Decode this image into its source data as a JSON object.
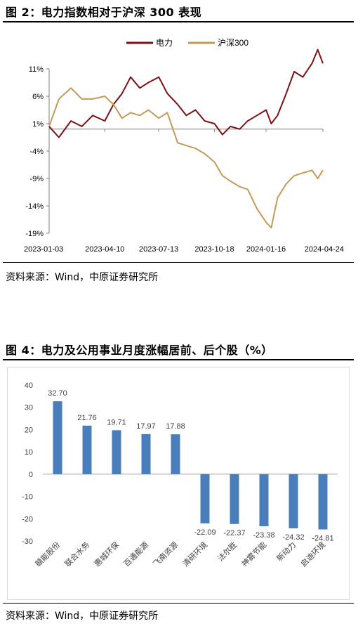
{
  "figure1": {
    "title": "图 2：电力指数相对于沪深 300 表现",
    "source": "资料来源：Wind，中原证券研究所"
  },
  "figure2": {
    "title": "图 4：电力及公用事业月度涨幅居前、后个股（%）",
    "source": "资料来源：Wind，中原证券研究所"
  },
  "chart_data": [
    {
      "type": "line",
      "title": "",
      "xlabel": "",
      "ylabel": "",
      "x_ticks": [
        "2023-01-03",
        "2023-04-10",
        "2023-07-13",
        "2023-10-18",
        "2024-01-16",
        "2024-04-24"
      ],
      "y_ticks": [
        "11%",
        "6%",
        "1%",
        "-4%",
        "-9%",
        "-14%",
        "-19%"
      ],
      "ylim": [
        -19,
        11
      ],
      "legend": "top-center",
      "series": [
        {
          "name": "电力",
          "color": "#7b1114",
          "x": [
            "2023-01-03",
            "2023-01-20",
            "2023-02-10",
            "2023-03-01",
            "2023-03-20",
            "2023-04-10",
            "2023-04-25",
            "2023-05-10",
            "2023-05-25",
            "2023-06-10",
            "2023-06-25",
            "2023-07-13",
            "2023-07-28",
            "2023-08-15",
            "2023-08-30",
            "2023-09-15",
            "2023-10-01",
            "2023-10-18",
            "2023-11-01",
            "2023-11-15",
            "2023-12-01",
            "2023-12-15",
            "2023-12-31",
            "2024-01-16",
            "2024-01-25",
            "2024-02-05",
            "2024-02-20",
            "2024-03-05",
            "2024-03-20",
            "2024-04-05",
            "2024-04-15",
            "2024-04-24"
          ],
          "values": [
            0.5,
            -1.5,
            1.5,
            0.5,
            2.5,
            1.5,
            4.5,
            6.5,
            9.5,
            7.5,
            8.5,
            9.5,
            6.5,
            4.5,
            2.5,
            3.5,
            1.5,
            1.0,
            -1.0,
            0.5,
            0.0,
            1.5,
            2.5,
            3.5,
            1.0,
            2.5,
            6.5,
            10.5,
            9.5,
            12.0,
            14.5,
            12.0
          ]
        },
        {
          "name": "沪深300",
          "color": "#c49a5a",
          "x": [
            "2023-01-03",
            "2023-01-20",
            "2023-02-10",
            "2023-03-01",
            "2023-03-20",
            "2023-04-10",
            "2023-04-25",
            "2023-05-10",
            "2023-05-25",
            "2023-06-10",
            "2023-06-25",
            "2023-07-13",
            "2023-07-28",
            "2023-08-15",
            "2023-08-30",
            "2023-09-15",
            "2023-10-01",
            "2023-10-18",
            "2023-11-01",
            "2023-11-15",
            "2023-12-01",
            "2023-12-15",
            "2023-12-31",
            "2024-01-16",
            "2024-01-25",
            "2024-02-05",
            "2024-02-20",
            "2024-03-05",
            "2024-03-20",
            "2024-04-05",
            "2024-04-15",
            "2024-04-24"
          ],
          "values": [
            0.5,
            5.5,
            7.5,
            5.5,
            5.5,
            6.0,
            4.5,
            2.0,
            3.0,
            2.5,
            3.5,
            2.0,
            3.0,
            -2.5,
            -3.0,
            -3.5,
            -4.5,
            -6.0,
            -8.5,
            -9.5,
            -10.5,
            -11.0,
            -14.5,
            -17.0,
            -18.0,
            -12.5,
            -10.0,
            -8.5,
            -8.0,
            -7.5,
            -9.0,
            -7.5
          ]
        }
      ]
    },
    {
      "type": "bar",
      "title": "",
      "xlabel": "",
      "ylabel": "",
      "ylim": [
        -30,
        40
      ],
      "y_ticks": [
        "40",
        "30",
        "20",
        "10",
        "0",
        "-10",
        "-20",
        "-30"
      ],
      "categories": [
        "赣能股份",
        "联合水务",
        "惠城环保",
        "百通能源",
        "飞南资源",
        "清研环境",
        "法尔胜",
        "神雾节能",
        "新动力",
        "启迪环境"
      ],
      "values": [
        32.7,
        21.76,
        19.71,
        17.97,
        17.88,
        -22.09,
        -22.37,
        -23.38,
        -24.32,
        -24.81
      ],
      "labels": [
        "32.70",
        "21.76",
        "19.71",
        "17.97",
        "17.88",
        "-22.09",
        "-22.37",
        "-23.38",
        "-24.32",
        "-24.81"
      ],
      "color": "#4a7ebb"
    }
  ]
}
